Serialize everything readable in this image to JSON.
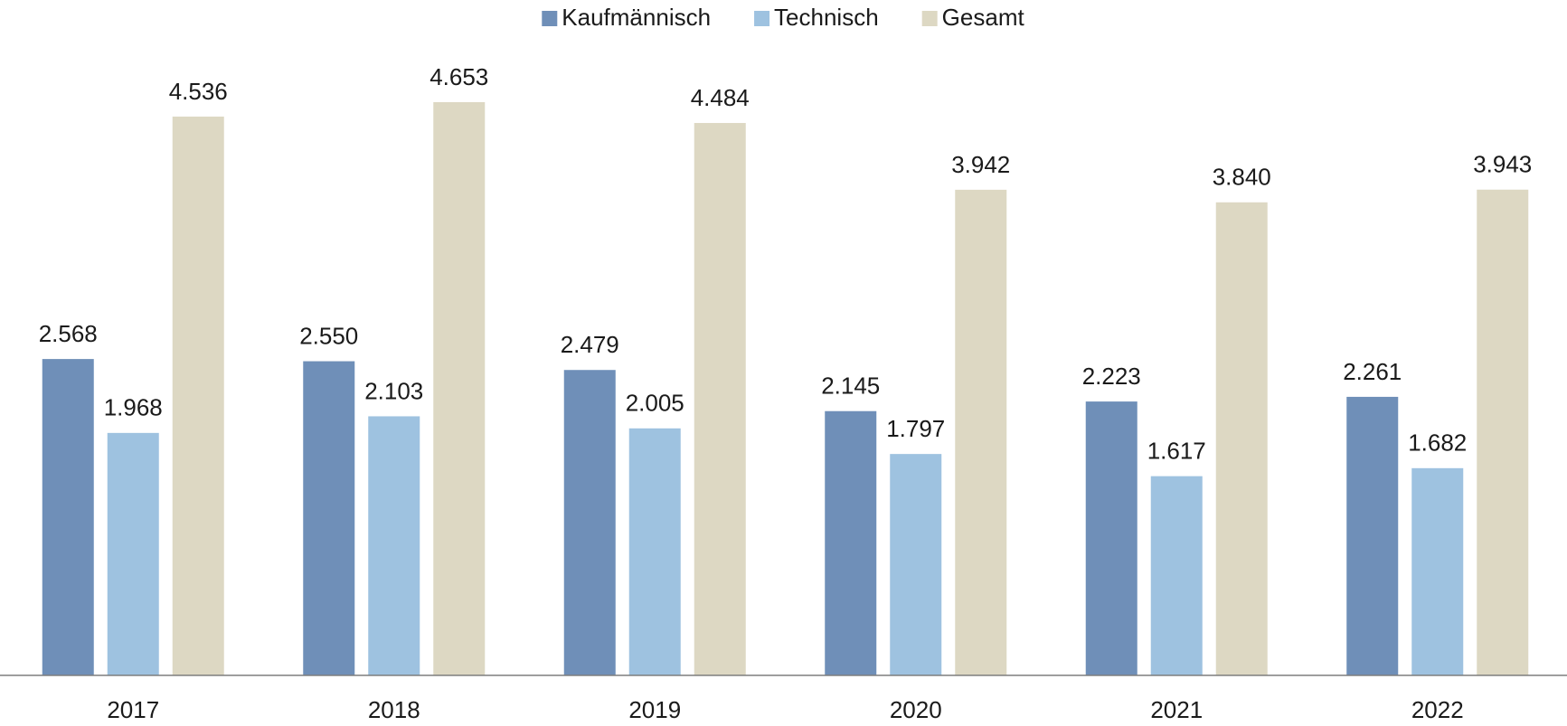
{
  "chart_data": {
    "type": "bar",
    "categories": [
      "2017",
      "2018",
      "2019",
      "2020",
      "2021",
      "2022"
    ],
    "series": [
      {
        "name": "Kaufmännisch",
        "color": "#6f8fb8",
        "values": [
          2568,
          2550,
          2479,
          2145,
          2223,
          2261
        ],
        "value_labels": [
          "2.568",
          "2.550",
          "2.479",
          "2.145",
          "2.223",
          "2.261"
        ]
      },
      {
        "name": "Technisch",
        "color": "#9ec2e0",
        "values": [
          1968,
          2103,
          2005,
          1797,
          1617,
          1682
        ],
        "value_labels": [
          "1.968",
          "2.103",
          "2.005",
          "1.797",
          "1.617",
          "1.682"
        ]
      },
      {
        "name": "Gesamt",
        "color": "#ddd8c3",
        "values": [
          4536,
          4653,
          4484,
          3942,
          3840,
          3943
        ],
        "value_labels": [
          "4.536",
          "4.653",
          "4.484",
          "3.942",
          "3.840",
          "3.943"
        ]
      }
    ],
    "legend": "top"
  }
}
